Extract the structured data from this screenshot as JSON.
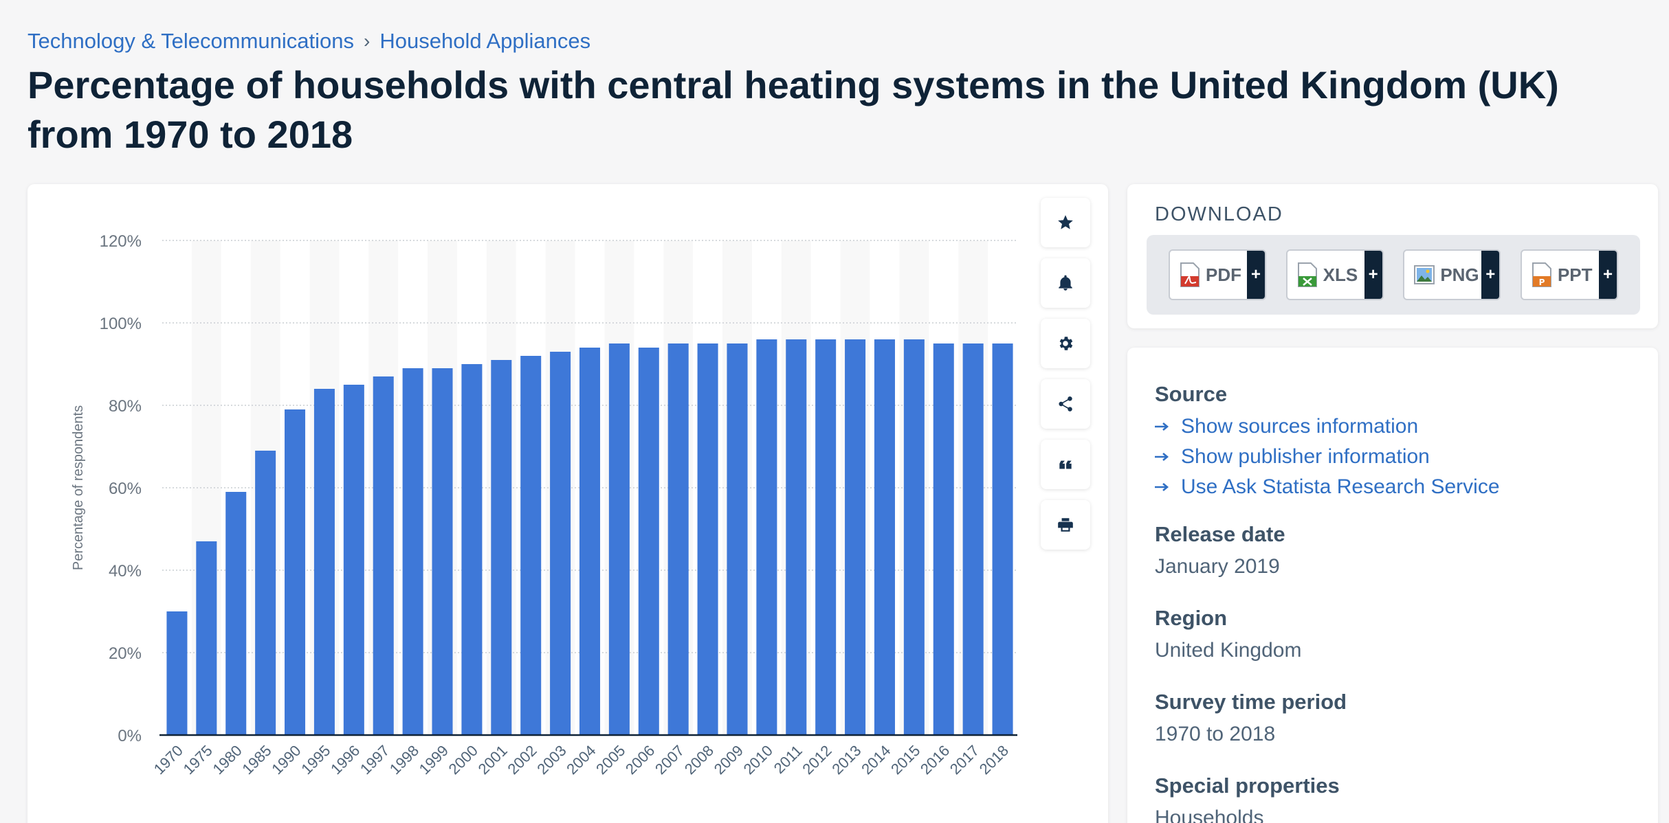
{
  "breadcrumb": {
    "items": [
      "Technology & Telecommunications",
      "Household Appliances"
    ],
    "separator": "›"
  },
  "page_title": "Percentage of households with central heating systems in the United Kingdom (UK) from 1970 to 2018",
  "chart_data": {
    "type": "bar",
    "title": "",
    "xlabel": "",
    "ylabel": "Percentage of respondents",
    "ylim": [
      0,
      120
    ],
    "yticks": [
      0,
      20,
      40,
      60,
      80,
      100,
      120
    ],
    "ytick_labels": [
      "0%",
      "20%",
      "40%",
      "60%",
      "80%",
      "100%",
      "120%"
    ],
    "categories": [
      "1970",
      "1975",
      "1980",
      "1985",
      "1990",
      "1995",
      "1996",
      "1997",
      "1998",
      "1999",
      "2000",
      "2001",
      "2002",
      "2003",
      "2004",
      "2005",
      "2006",
      "2007",
      "2008",
      "2009",
      "2010",
      "2011",
      "2012",
      "2013",
      "2014",
      "2015",
      "2016",
      "2017",
      "2018"
    ],
    "values": [
      30,
      47,
      59,
      69,
      79,
      84,
      85,
      87,
      89,
      89,
      90,
      91,
      92,
      93,
      94,
      95,
      94,
      95,
      95,
      95,
      96,
      96,
      96,
      96,
      96,
      96,
      95,
      95,
      95
    ],
    "bar_color": "#3e78d8",
    "grid": true
  },
  "tools": [
    {
      "name": "star",
      "icon": "star-icon"
    },
    {
      "name": "bell",
      "icon": "bell-icon"
    },
    {
      "name": "settings",
      "icon": "gear-icon"
    },
    {
      "name": "share",
      "icon": "share-icon"
    },
    {
      "name": "cite",
      "icon": "quote-icon"
    },
    {
      "name": "print",
      "icon": "print-icon"
    }
  ],
  "download": {
    "title": "DOWNLOAD",
    "buttons": [
      {
        "label": "PDF",
        "plus": "+",
        "color": "#d23b2e"
      },
      {
        "label": "XLS",
        "plus": "+",
        "color": "#3a9a3a"
      },
      {
        "label": "PNG",
        "plus": "+",
        "color": "#3b7bd0"
      },
      {
        "label": "PPT",
        "plus": "+",
        "color": "#e27a26"
      }
    ]
  },
  "info": {
    "source_heading": "Source",
    "source_links": [
      "Show sources information",
      "Show publisher information",
      "Use Ask Statista Research Service"
    ],
    "release_heading": "Release date",
    "release_value": "January 2019",
    "region_heading": "Region",
    "region_value": "United Kingdom",
    "period_heading": "Survey time period",
    "period_value": "1970 to 2018",
    "special_heading": "Special properties",
    "special_value": "Households"
  },
  "colors": {
    "accent": "#2f6fc4",
    "bar": "#3e78d8",
    "dark": "#0f2337"
  }
}
